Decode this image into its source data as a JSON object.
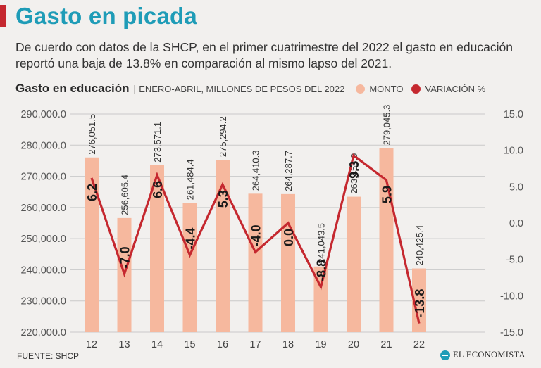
{
  "header": {
    "title": "Gasto en picada",
    "subtitle": "De cuerdo con datos de la SHCP, en el primer cuatrimestre del 2022 el gasto en educación reportó una baja de 13.8% en comparación al mismo lapso del 2021."
  },
  "chart_header": {
    "title": "Gasto en educación",
    "separator": "|",
    "units": "ENERO-ABRIL, MILLONES DE PESOS DEL 2022",
    "legend": {
      "bar_label": "MONTO",
      "line_label": "VARIACIÓN %"
    }
  },
  "footer": {
    "source": "FUENTE: SHCP",
    "logo_text": "EL ECONOMISTA"
  },
  "colors": {
    "bar": "#f6b89e",
    "line": "#c5282f",
    "title": "#1f9cb7",
    "grid": "#c9c9c9"
  },
  "chart_data": {
    "type": "bar",
    "categories": [
      "12",
      "13",
      "14",
      "15",
      "16",
      "17",
      "18",
      "19",
      "20",
      "21",
      "22"
    ],
    "series": [
      {
        "name": "MONTO",
        "type": "bar",
        "axis": "left",
        "values": [
          276051.5,
          256605.4,
          273571.1,
          261484.4,
          275294.2,
          264410.3,
          264287.7,
          241043.5,
          263453.0,
          279045.3,
          240425.4
        ],
        "labels": [
          "276,051.5",
          "256,605.4",
          "273,571.1",
          "261,484.4",
          "275,294.2",
          "264,410.3",
          "264,287.7",
          "241,043.5",
          "263,453.0",
          "279,045.3",
          "240,425.4"
        ]
      },
      {
        "name": "VARIACIÓN %",
        "type": "line",
        "axis": "right",
        "values": [
          6.2,
          -7.0,
          6.6,
          -4.4,
          5.3,
          -4.0,
          0.0,
          -8.8,
          9.3,
          5.9,
          -13.8
        ],
        "labels": [
          "6.2",
          "-7.0",
          "6.6",
          "-4.4",
          "5.3",
          "-4.0",
          "0.0",
          "-8.8",
          "9.3",
          "5.9",
          "-13.8"
        ]
      }
    ],
    "left_axis": {
      "ylim": [
        220000,
        290000
      ],
      "ticks": [
        220000,
        230000,
        240000,
        250000,
        260000,
        270000,
        280000,
        290000
      ],
      "tick_labels": [
        "220,000.0",
        "230,000.0",
        "240,000.0",
        "250,000.0",
        "260,000.0",
        "270,000.0",
        "280,000.0",
        "290,000.0"
      ]
    },
    "right_axis": {
      "ylim": [
        -15,
        15
      ],
      "ticks": [
        -15,
        -10,
        -5,
        0,
        5,
        10,
        15
      ],
      "tick_labels": [
        "-15.0",
        "-10.0",
        "-5.0",
        "0.0",
        "5.0",
        "10.0",
        "15.0"
      ]
    },
    "grid": true
  }
}
